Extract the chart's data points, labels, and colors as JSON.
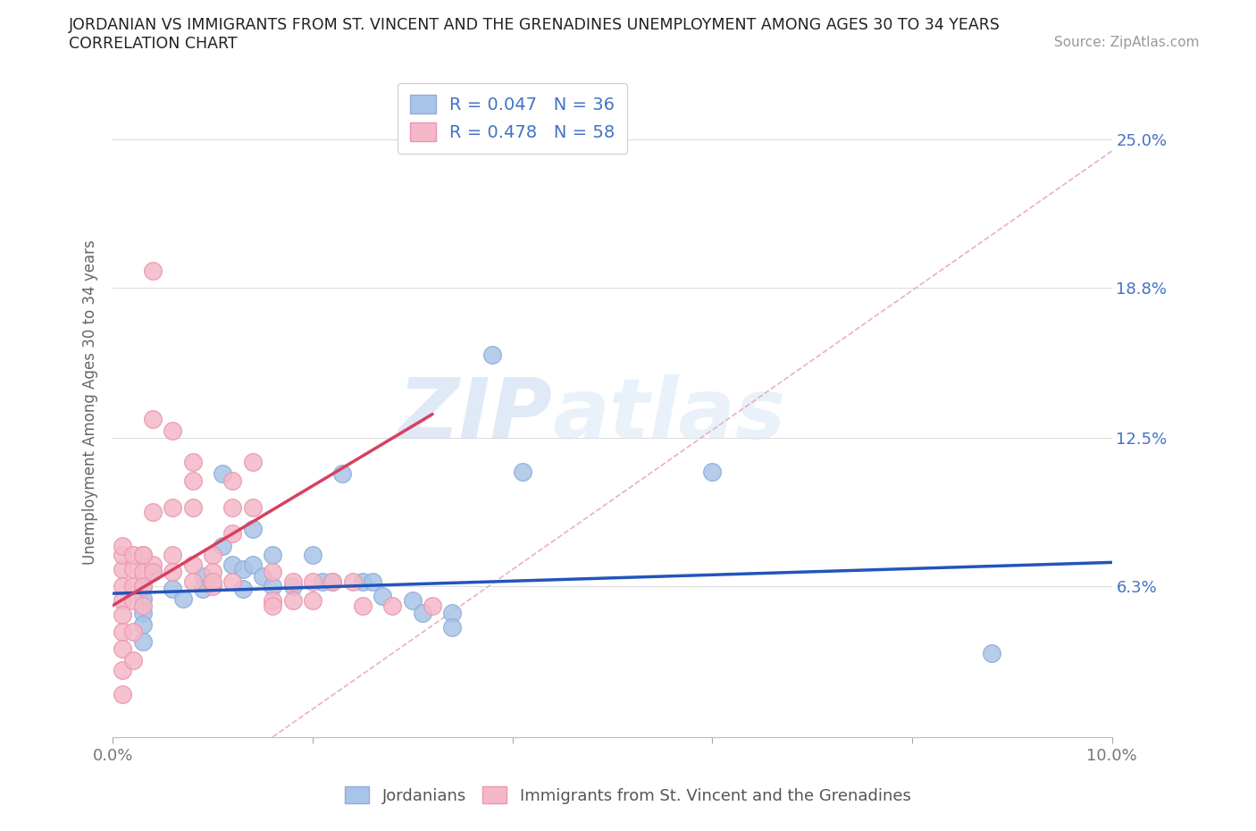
{
  "title_line1": "JORDANIAN VS IMMIGRANTS FROM ST. VINCENT AND THE GRENADINES UNEMPLOYMENT AMONG AGES 30 TO 34 YEARS",
  "title_line2": "CORRELATION CHART",
  "source_text": "Source: ZipAtlas.com",
  "ylabel": "Unemployment Among Ages 30 to 34 years",
  "xlim": [
    0.0,
    0.1
  ],
  "ylim": [
    0.0,
    0.28
  ],
  "ytick_positions": [
    0.0,
    0.063,
    0.125,
    0.188,
    0.25
  ],
  "ytick_labels": [
    "",
    "6.3%",
    "12.5%",
    "18.8%",
    "25.0%"
  ],
  "watermark_zip": "ZIP",
  "watermark_atlas": "atlas",
  "legend_blue_r": "0.047",
  "legend_blue_n": "36",
  "legend_pink_r": "0.478",
  "legend_pink_n": "58",
  "blue_color": "#a8c4e8",
  "blue_edge_color": "#90aed8",
  "pink_color": "#f5b8c8",
  "pink_edge_color": "#e898b0",
  "blue_line_color": "#2255bb",
  "pink_line_color": "#d84060",
  "diag_line_color": "#e8a8b8",
  "grid_color": "#dddddd",
  "title_color": "#222222",
  "label_color": "#888888",
  "axis_label_color": "#666666",
  "right_tick_color": "#4472c4",
  "jordanian_x": [
    0.003,
    0.003,
    0.003,
    0.003,
    0.003,
    0.004,
    0.006,
    0.007,
    0.009,
    0.009,
    0.011,
    0.011,
    0.012,
    0.013,
    0.013,
    0.014,
    0.014,
    0.015,
    0.016,
    0.016,
    0.018,
    0.02,
    0.021,
    0.022,
    0.023,
    0.025,
    0.026,
    0.027,
    0.03,
    0.031,
    0.034,
    0.034,
    0.038,
    0.041,
    0.06,
    0.088
  ],
  "jordanian_y": [
    0.063,
    0.058,
    0.052,
    0.047,
    0.04,
    0.069,
    0.062,
    0.058,
    0.067,
    0.062,
    0.11,
    0.08,
    0.072,
    0.07,
    0.062,
    0.087,
    0.072,
    0.067,
    0.076,
    0.063,
    0.063,
    0.076,
    0.065,
    0.065,
    0.11,
    0.065,
    0.065,
    0.059,
    0.057,
    0.052,
    0.052,
    0.046,
    0.16,
    0.111,
    0.111,
    0.035
  ],
  "svg_x": [
    0.001,
    0.001,
    0.001,
    0.001,
    0.001,
    0.001,
    0.001,
    0.001,
    0.002,
    0.002,
    0.002,
    0.002,
    0.002,
    0.003,
    0.003,
    0.003,
    0.003,
    0.004,
    0.004,
    0.004,
    0.004,
    0.006,
    0.006,
    0.006,
    0.008,
    0.008,
    0.008,
    0.008,
    0.01,
    0.01,
    0.01,
    0.012,
    0.012,
    0.012,
    0.014,
    0.014,
    0.016,
    0.016,
    0.018,
    0.018,
    0.02,
    0.02,
    0.022,
    0.024,
    0.025,
    0.028,
    0.032,
    0.001,
    0.001,
    0.002,
    0.003,
    0.004,
    0.006,
    0.008,
    0.01,
    0.012,
    0.016
  ],
  "svg_y": [
    0.07,
    0.063,
    0.057,
    0.051,
    0.044,
    0.037,
    0.028,
    0.018,
    0.07,
    0.063,
    0.057,
    0.044,
    0.032,
    0.076,
    0.069,
    0.063,
    0.055,
    0.195,
    0.133,
    0.094,
    0.072,
    0.128,
    0.096,
    0.076,
    0.115,
    0.107,
    0.096,
    0.072,
    0.076,
    0.069,
    0.063,
    0.107,
    0.096,
    0.085,
    0.115,
    0.096,
    0.069,
    0.057,
    0.065,
    0.057,
    0.065,
    0.057,
    0.065,
    0.065,
    0.055,
    0.055,
    0.055,
    0.076,
    0.08,
    0.076,
    0.076,
    0.069,
    0.069,
    0.065,
    0.065,
    0.065,
    0.055
  ],
  "blue_line_x": [
    0.0,
    0.1
  ],
  "blue_line_y": [
    0.06,
    0.073
  ],
  "pink_line_x": [
    0.0,
    0.032
  ],
  "pink_line_y": [
    0.055,
    0.135
  ],
  "diag_line_x": [
    0.016,
    0.1
  ],
  "diag_line_y": [
    0.0,
    0.245
  ]
}
